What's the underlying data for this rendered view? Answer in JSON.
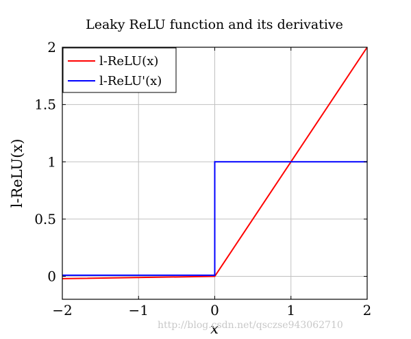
{
  "chart_data": {
    "type": "line",
    "title": "Leaky ReLU function and its derivative",
    "xlabel": "x",
    "ylabel": "l-ReLU(x)",
    "xlim": [
      -2,
      2
    ],
    "ylim": [
      -0.2,
      2
    ],
    "xticks": [
      -2,
      -1,
      0,
      1,
      2
    ],
    "xtick_labels": [
      "−2",
      "−1",
      "0",
      "1",
      "2"
    ],
    "yticks": [
      0,
      0.5,
      1,
      1.5,
      2
    ],
    "ytick_labels": [
      "0",
      "0.5",
      "1",
      "1.5",
      "2"
    ],
    "grid": true,
    "legend_position": "top-left",
    "series": [
      {
        "name": "l-ReLU(x)",
        "color": "#ff0000",
        "x": [
          -2,
          0,
          2
        ],
        "y": [
          -0.02,
          0,
          2
        ]
      },
      {
        "name": "l-ReLU'(x)",
        "color": "#0000ff",
        "x": [
          -2,
          0,
          0,
          2
        ],
        "y": [
          0.01,
          0.01,
          1,
          1
        ]
      }
    ],
    "watermark": "http://blog.csdn.net/qsczse943062710"
  }
}
